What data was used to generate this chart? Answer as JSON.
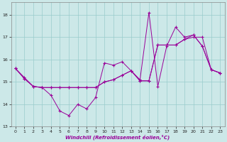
{
  "xlabel": "Windchill (Refroidissement éolien,°C)",
  "background_color": "#cce8e8",
  "grid_color": "#99cccc",
  "line_color": "#990099",
  "xlim": [
    -0.5,
    23.5
  ],
  "ylim": [
    13,
    18.55
  ],
  "yticks": [
    13,
    14,
    15,
    16,
    17,
    18
  ],
  "xticks": [
    0,
    1,
    2,
    3,
    4,
    5,
    6,
    7,
    8,
    9,
    10,
    11,
    12,
    13,
    14,
    15,
    16,
    17,
    18,
    19,
    20,
    21,
    22,
    23
  ],
  "series1_y": [
    15.6,
    15.2,
    14.8,
    14.75,
    14.4,
    13.7,
    13.5,
    14.0,
    13.8,
    14.3,
    15.85,
    15.75,
    15.9,
    15.5,
    15.1,
    18.1,
    14.8,
    16.6,
    17.45,
    17.0,
    17.1,
    16.6,
    15.55,
    15.4
  ],
  "series2_y": [
    15.6,
    15.15,
    14.8,
    14.75,
    14.75,
    14.75,
    14.75,
    14.75,
    14.75,
    14.75,
    15.0,
    15.1,
    15.3,
    15.5,
    15.05,
    15.05,
    16.65,
    16.65,
    16.65,
    16.9,
    17.0,
    17.0,
    15.55,
    15.4
  ],
  "series3_y": [
    15.6,
    15.15,
    14.8,
    14.75,
    14.75,
    14.75,
    14.75,
    14.75,
    14.75,
    14.75,
    15.0,
    15.1,
    15.3,
    15.5,
    15.05,
    15.05,
    16.65,
    16.65,
    16.65,
    16.9,
    17.1,
    16.6,
    15.55,
    15.4
  ]
}
